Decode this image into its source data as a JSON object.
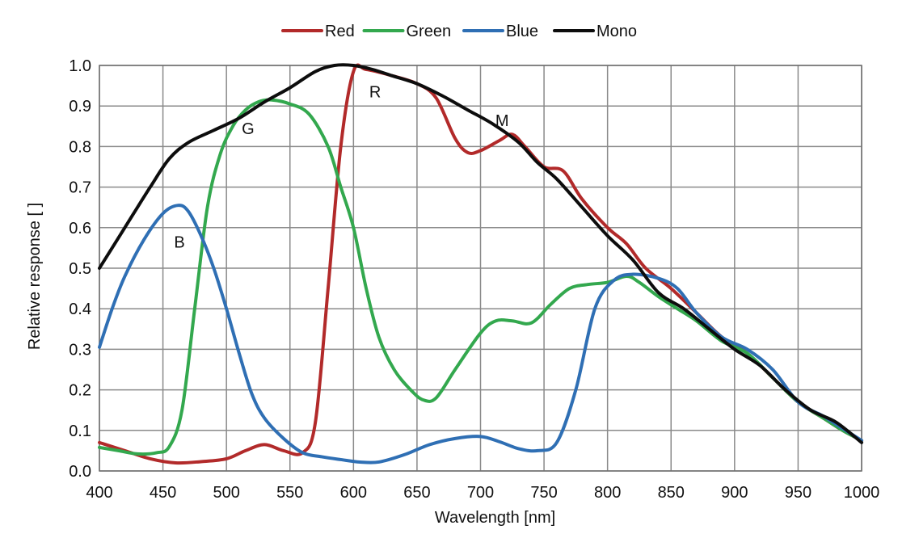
{
  "chart_data": {
    "type": "line",
    "xlabel": "Wavelength [nm]",
    "ylabel": "Relative response [ ]",
    "xlim": [
      400,
      1000
    ],
    "ylim": [
      0.0,
      1.0
    ],
    "x_ticks": [
      400,
      450,
      500,
      550,
      600,
      650,
      700,
      750,
      800,
      850,
      900,
      950,
      1000
    ],
    "y_ticks": [
      "0.0",
      "0.1",
      "0.2",
      "0.3",
      "0.4",
      "0.5",
      "0.6",
      "0.7",
      "0.8",
      "0.9",
      "1.0"
    ],
    "grid": true,
    "legend_position": "top-center",
    "series": [
      {
        "name": "Red",
        "color": "#b22a2a",
        "label": "R",
        "label_at": [
          617,
          0.935
        ],
        "points": [
          [
            400,
            0.07
          ],
          [
            420,
            0.05
          ],
          [
            440,
            0.03
          ],
          [
            460,
            0.02
          ],
          [
            480,
            0.023
          ],
          [
            500,
            0.03
          ],
          [
            515,
            0.05
          ],
          [
            530,
            0.065
          ],
          [
            545,
            0.05
          ],
          [
            560,
            0.045
          ],
          [
            570,
            0.12
          ],
          [
            580,
            0.45
          ],
          [
            590,
            0.8
          ],
          [
            600,
            0.985
          ],
          [
            610,
            0.99
          ],
          [
            630,
            0.975
          ],
          [
            650,
            0.955
          ],
          [
            665,
            0.92
          ],
          [
            680,
            0.82
          ],
          [
            690,
            0.785
          ],
          [
            700,
            0.79
          ],
          [
            715,
            0.815
          ],
          [
            725,
            0.83
          ],
          [
            735,
            0.8
          ],
          [
            750,
            0.75
          ],
          [
            765,
            0.74
          ],
          [
            780,
            0.67
          ],
          [
            800,
            0.6
          ],
          [
            815,
            0.56
          ],
          [
            830,
            0.5
          ],
          [
            850,
            0.45
          ],
          [
            870,
            0.39
          ],
          [
            890,
            0.33
          ],
          [
            910,
            0.29
          ],
          [
            930,
            0.23
          ],
          [
            950,
            0.17
          ],
          [
            970,
            0.13
          ],
          [
            985,
            0.1
          ],
          [
            1000,
            0.075
          ]
        ]
      },
      {
        "name": "Green",
        "color": "#33a84e",
        "label": "G",
        "label_at": [
          517,
          0.845
        ],
        "points": [
          [
            400,
            0.058
          ],
          [
            415,
            0.05
          ],
          [
            430,
            0.042
          ],
          [
            445,
            0.045
          ],
          [
            455,
            0.06
          ],
          [
            465,
            0.15
          ],
          [
            475,
            0.4
          ],
          [
            485,
            0.65
          ],
          [
            495,
            0.78
          ],
          [
            505,
            0.85
          ],
          [
            515,
            0.89
          ],
          [
            525,
            0.91
          ],
          [
            535,
            0.915
          ],
          [
            550,
            0.905
          ],
          [
            565,
            0.88
          ],
          [
            580,
            0.8
          ],
          [
            590,
            0.7
          ],
          [
            600,
            0.6
          ],
          [
            610,
            0.45
          ],
          [
            620,
            0.33
          ],
          [
            632,
            0.25
          ],
          [
            645,
            0.2
          ],
          [
            655,
            0.175
          ],
          [
            665,
            0.18
          ],
          [
            680,
            0.25
          ],
          [
            700,
            0.34
          ],
          [
            712,
            0.37
          ],
          [
            725,
            0.37
          ],
          [
            740,
            0.365
          ],
          [
            755,
            0.41
          ],
          [
            770,
            0.45
          ],
          [
            785,
            0.46
          ],
          [
            800,
            0.465
          ],
          [
            815,
            0.48
          ],
          [
            825,
            0.465
          ],
          [
            840,
            0.43
          ],
          [
            855,
            0.4
          ],
          [
            870,
            0.37
          ],
          [
            890,
            0.32
          ],
          [
            910,
            0.29
          ],
          [
            930,
            0.23
          ],
          [
            950,
            0.17
          ],
          [
            970,
            0.13
          ],
          [
            985,
            0.1
          ],
          [
            1000,
            0.075
          ]
        ]
      },
      {
        "name": "Blue",
        "color": "#2f6fb4",
        "label": "B",
        "label_at": [
          463,
          0.565
        ],
        "points": [
          [
            400,
            0.305
          ],
          [
            410,
            0.4
          ],
          [
            420,
            0.48
          ],
          [
            435,
            0.57
          ],
          [
            450,
            0.635
          ],
          [
            462,
            0.655
          ],
          [
            470,
            0.64
          ],
          [
            480,
            0.58
          ],
          [
            490,
            0.5
          ],
          [
            500,
            0.4
          ],
          [
            510,
            0.29
          ],
          [
            520,
            0.19
          ],
          [
            530,
            0.13
          ],
          [
            545,
            0.08
          ],
          [
            560,
            0.045
          ],
          [
            575,
            0.035
          ],
          [
            590,
            0.028
          ],
          [
            605,
            0.022
          ],
          [
            620,
            0.022
          ],
          [
            640,
            0.04
          ],
          [
            660,
            0.065
          ],
          [
            680,
            0.08
          ],
          [
            700,
            0.085
          ],
          [
            715,
            0.072
          ],
          [
            730,
            0.055
          ],
          [
            745,
            0.05
          ],
          [
            760,
            0.07
          ],
          [
            775,
            0.2
          ],
          [
            790,
            0.4
          ],
          [
            805,
            0.47
          ],
          [
            820,
            0.485
          ],
          [
            840,
            0.475
          ],
          [
            855,
            0.45
          ],
          [
            870,
            0.39
          ],
          [
            890,
            0.33
          ],
          [
            910,
            0.3
          ],
          [
            930,
            0.25
          ],
          [
            950,
            0.17
          ],
          [
            970,
            0.135
          ],
          [
            985,
            0.105
          ],
          [
            1000,
            0.075
          ]
        ]
      },
      {
        "name": "Mono",
        "color": "#0d0d0d",
        "label": "M",
        "label_at": [
          717,
          0.865
        ],
        "points": [
          [
            400,
            0.5
          ],
          [
            420,
            0.6
          ],
          [
            440,
            0.7
          ],
          [
            455,
            0.77
          ],
          [
            470,
            0.81
          ],
          [
            490,
            0.84
          ],
          [
            510,
            0.87
          ],
          [
            530,
            0.91
          ],
          [
            550,
            0.945
          ],
          [
            570,
            0.985
          ],
          [
            585,
            1.0
          ],
          [
            600,
            1.0
          ],
          [
            615,
            0.99
          ],
          [
            630,
            0.975
          ],
          [
            650,
            0.955
          ],
          [
            670,
            0.925
          ],
          [
            690,
            0.89
          ],
          [
            710,
            0.855
          ],
          [
            730,
            0.81
          ],
          [
            745,
            0.76
          ],
          [
            760,
            0.72
          ],
          [
            780,
            0.65
          ],
          [
            800,
            0.58
          ],
          [
            820,
            0.52
          ],
          [
            840,
            0.44
          ],
          [
            860,
            0.4
          ],
          [
            880,
            0.35
          ],
          [
            900,
            0.3
          ],
          [
            920,
            0.26
          ],
          [
            940,
            0.2
          ],
          [
            960,
            0.15
          ],
          [
            980,
            0.12
          ],
          [
            1000,
            0.07
          ]
        ]
      }
    ]
  }
}
